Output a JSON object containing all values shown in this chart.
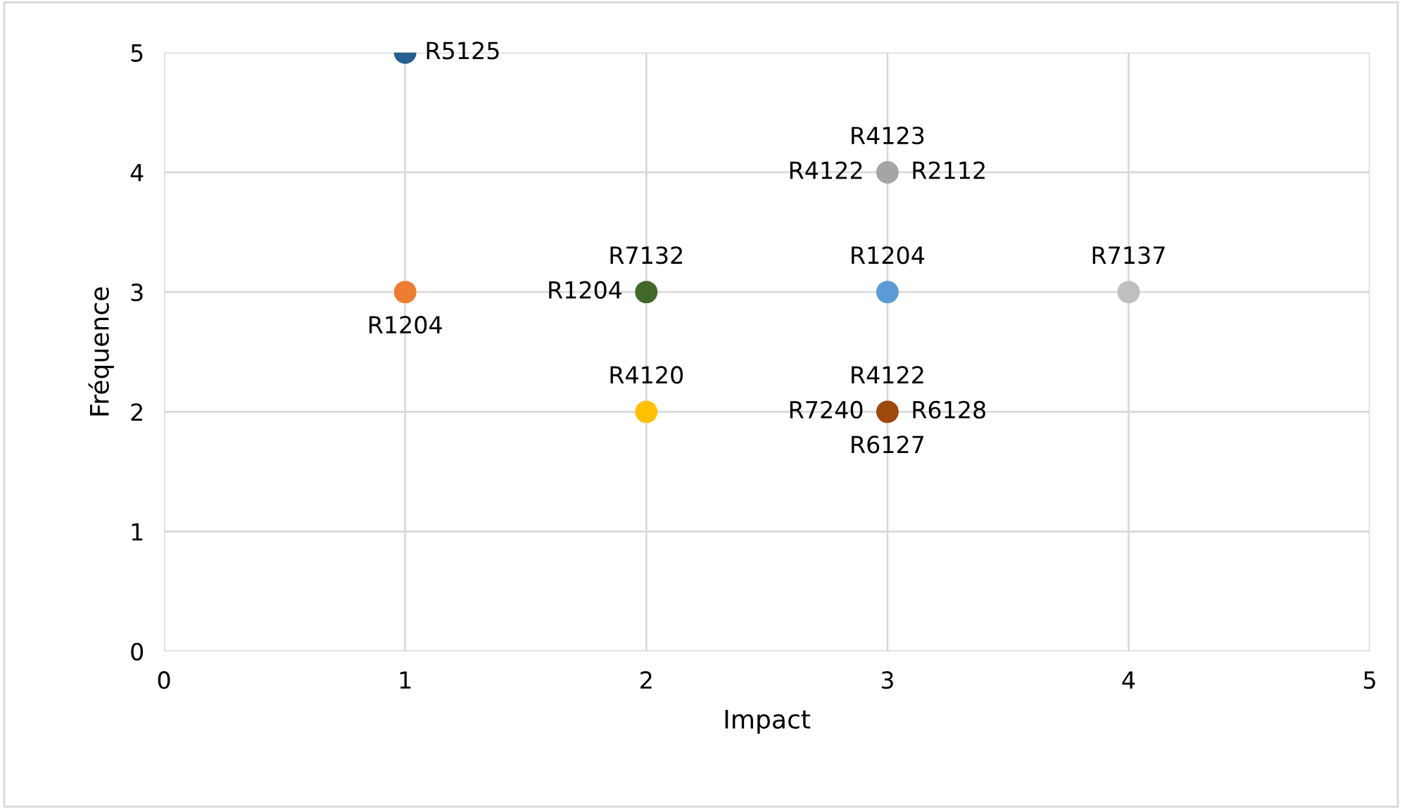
{
  "chart_data": {
    "type": "scatter",
    "xlabel": "Impact",
    "ylabel": "Fréquence",
    "x": [
      1,
      1,
      2,
      2,
      3,
      3,
      3,
      4
    ],
    "values": [
      5,
      3,
      3,
      2,
      4,
      3,
      2,
      3
    ],
    "colors": [
      "#255e91",
      "#ed7d31",
      "#43682b",
      "#ffc000",
      "#a5a5a5",
      "#5b9bd5",
      "#9e480e",
      "#bfbfbf"
    ],
    "annotations": [
      {
        "text": "R5125",
        "x": 1,
        "y": 5
      },
      {
        "text": "R1204",
        "x": 1,
        "y": 3
      },
      {
        "text": "R7132",
        "x": 2,
        "y": 3
      },
      {
        "text": "R1204",
        "x": 2,
        "y": 3
      },
      {
        "text": "R4120",
        "x": 2,
        "y": 2
      },
      {
        "text": "R4123",
        "x": 3,
        "y": 4
      },
      {
        "text": "R4122",
        "x": 3,
        "y": 4
      },
      {
        "text": "R2112",
        "x": 3,
        "y": 4
      },
      {
        "text": "R1204",
        "x": 3,
        "y": 3
      },
      {
        "text": "R4122",
        "x": 3,
        "y": 2
      },
      {
        "text": "R7240",
        "x": 3,
        "y": 2
      },
      {
        "text": "R6128",
        "x": 3,
        "y": 2
      },
      {
        "text": "R6127",
        "x": 3,
        "y": 2
      },
      {
        "text": "R7137",
        "x": 4,
        "y": 3
      }
    ],
    "xlim": [
      0,
      5
    ],
    "ylim": [
      0,
      5
    ],
    "xticks": [
      0,
      1,
      2,
      3,
      4,
      5
    ],
    "yticks": [
      0,
      1,
      2,
      3,
      4,
      5
    ],
    "grid": true,
    "marker": "circle"
  }
}
